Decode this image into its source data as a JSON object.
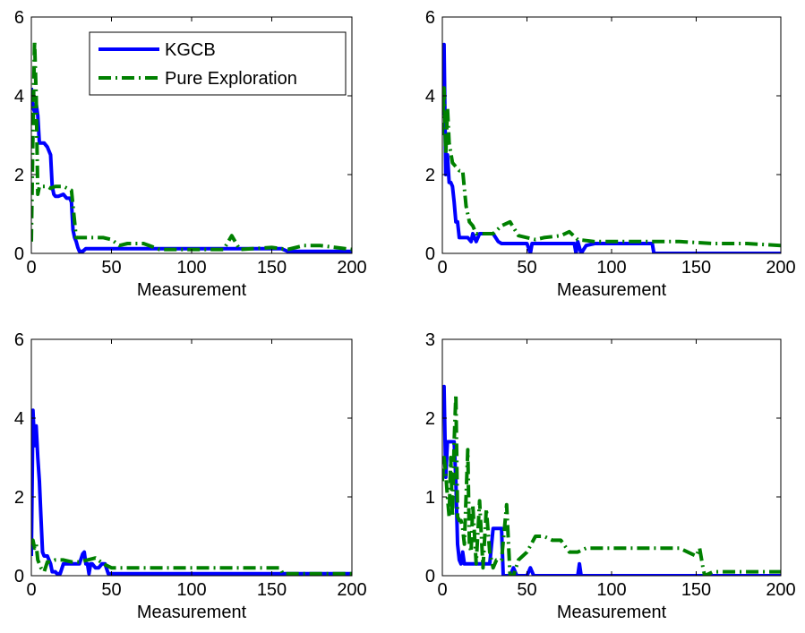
{
  "figure": {
    "legend": {
      "placement": "top-right of first panel",
      "entries": [
        {
          "label": "KGCB",
          "series_index": 0
        },
        {
          "label": "Pure Exploration",
          "series_index": 1
        }
      ]
    },
    "series_styles": [
      {
        "name": "KGCB",
        "color": "#0000ff",
        "dash": "solid"
      },
      {
        "name": "Pure Exploration",
        "color": "#008000",
        "dash": "dash-dot"
      }
    ]
  },
  "chart_data": [
    {
      "type": "line",
      "title": "",
      "xlabel": "Measurement",
      "ylabel": "",
      "xlim": [
        0,
        200
      ],
      "ylim": [
        0,
        6
      ],
      "xticks": [
        0,
        50,
        100,
        150,
        200
      ],
      "yticks": [
        0,
        2,
        4,
        6
      ],
      "grid": false,
      "series": [
        {
          "name": "KGCB",
          "x": [
            0,
            1,
            2,
            3,
            4,
            5,
            6,
            7,
            8,
            10,
            12,
            13,
            14,
            15,
            17,
            20,
            22,
            24,
            25,
            26,
            27,
            28,
            29,
            30,
            32,
            34,
            36,
            40,
            60,
            80,
            100,
            120,
            140,
            156,
            160,
            200
          ],
          "y": [
            4.2,
            3.7,
            3.6,
            3.8,
            3.5,
            2.8,
            2.8,
            2.8,
            2.8,
            2.7,
            2.5,
            1.7,
            1.5,
            1.45,
            1.45,
            1.5,
            1.4,
            1.4,
            1.3,
            0.6,
            0.4,
            0.3,
            0.15,
            0.05,
            0.05,
            0.12,
            0.12,
            0.12,
            0.12,
            0.12,
            0.12,
            0.12,
            0.12,
            0.12,
            0.05,
            0.05
          ]
        },
        {
          "name": "Pure Exploration",
          "x": [
            0,
            1,
            2,
            3,
            4,
            5,
            6,
            8,
            10,
            12,
            15,
            18,
            20,
            25,
            28,
            30,
            32,
            35,
            38,
            40,
            45,
            50,
            55,
            60,
            70,
            80,
            100,
            120,
            125,
            130,
            150,
            160,
            170,
            180,
            200
          ],
          "y": [
            0.3,
            3.0,
            5.4,
            4.0,
            1.5,
            1.7,
            1.7,
            1.7,
            1.7,
            1.65,
            1.7,
            1.7,
            1.7,
            1.6,
            0.4,
            0.4,
            0.4,
            0.4,
            0.4,
            0.4,
            0.4,
            0.35,
            0.2,
            0.25,
            0.25,
            0.1,
            0.1,
            0.1,
            0.45,
            0.1,
            0.15,
            0.1,
            0.2,
            0.2,
            0.1
          ]
        }
      ]
    },
    {
      "type": "line",
      "title": "",
      "xlabel": "Measurement",
      "ylabel": "",
      "xlim": [
        0,
        200
      ],
      "ylim": [
        0,
        6
      ],
      "xticks": [
        0,
        50,
        100,
        150,
        200
      ],
      "yticks": [
        0,
        2,
        4,
        6
      ],
      "grid": false,
      "series": [
        {
          "name": "KGCB",
          "x": [
            0,
            1,
            2,
            3,
            4,
            5,
            6,
            7,
            8,
            9,
            10,
            12,
            15,
            17,
            18,
            20,
            22,
            25,
            30,
            33,
            35,
            40,
            50,
            52,
            53,
            55,
            60,
            70,
            78,
            79,
            80,
            82,
            85,
            90,
            95,
            100,
            110,
            120,
            124,
            125,
            130,
            150,
            200
          ],
          "y": [
            3.5,
            5.3,
            2.0,
            2.5,
            1.8,
            1.8,
            1.7,
            1.3,
            0.8,
            0.8,
            0.4,
            0.4,
            0.4,
            0.3,
            0.5,
            0.3,
            0.5,
            0.5,
            0.5,
            0.3,
            0.25,
            0.25,
            0.25,
            0.0,
            0.25,
            0.25,
            0.25,
            0.25,
            0.25,
            0.0,
            0.3,
            0.0,
            0.2,
            0.25,
            0.25,
            0.25,
            0.25,
            0.25,
            0.25,
            0.0,
            0.0,
            0.0,
            0.0
          ]
        },
        {
          "name": "Pure Exploration",
          "x": [
            0,
            1,
            2,
            3,
            4,
            6,
            8,
            10,
            12,
            14,
            16,
            18,
            20,
            25,
            30,
            35,
            40,
            45,
            50,
            55,
            60,
            70,
            75,
            80,
            90,
            100,
            120,
            140,
            160,
            180,
            200
          ],
          "y": [
            3.0,
            4.2,
            2.5,
            3.7,
            2.8,
            2.3,
            2.2,
            2.1,
            2.1,
            1.2,
            0.8,
            0.7,
            0.5,
            0.5,
            0.5,
            0.7,
            0.8,
            0.45,
            0.4,
            0.35,
            0.4,
            0.45,
            0.55,
            0.35,
            0.3,
            0.3,
            0.3,
            0.3,
            0.25,
            0.25,
            0.2
          ]
        }
      ]
    },
    {
      "type": "line",
      "title": "",
      "xlabel": "Measurement",
      "ylabel": "",
      "xlim": [
        0,
        200
      ],
      "ylim": [
        0,
        6
      ],
      "xticks": [
        0,
        50,
        100,
        150,
        200
      ],
      "yticks": [
        0,
        2,
        4,
        6
      ],
      "grid": false,
      "series": [
        {
          "name": "KGCB",
          "x": [
            0,
            1,
            2,
            3,
            4,
            5,
            6,
            7,
            8,
            9,
            10,
            11,
            12,
            13,
            14,
            15,
            16,
            18,
            20,
            22,
            25,
            30,
            32,
            33,
            34,
            35,
            36,
            37,
            38,
            40,
            42,
            44,
            46,
            48,
            50,
            60,
            80,
            100,
            150,
            200
          ],
          "y": [
            0.5,
            4.2,
            3.3,
            3.8,
            3.0,
            2.4,
            1.5,
            0.6,
            0.5,
            0.5,
            0.5,
            0.4,
            0.3,
            0.1,
            0.1,
            0.1,
            0.05,
            0.05,
            0.3,
            0.3,
            0.3,
            0.3,
            0.55,
            0.6,
            0.3,
            0.3,
            0.05,
            0.3,
            0.3,
            0.2,
            0.2,
            0.3,
            0.3,
            0.05,
            0.05,
            0.05,
            0.05,
            0.05,
            0.05,
            0.05
          ]
        },
        {
          "name": "Pure Exploration",
          "x": [
            0,
            1,
            2,
            3,
            4,
            5,
            6,
            8,
            10,
            12,
            15,
            20,
            25,
            30,
            35,
            40,
            45,
            50,
            60,
            80,
            100,
            120,
            140,
            155,
            157,
            160,
            180,
            200
          ],
          "y": [
            0.8,
            0.9,
            0.7,
            0.8,
            0.4,
            0.3,
            0.2,
            0.1,
            0.35,
            0.35,
            0.4,
            0.4,
            0.35,
            0.35,
            0.4,
            0.45,
            0.3,
            0.2,
            0.2,
            0.2,
            0.2,
            0.2,
            0.2,
            0.2,
            0.05,
            0.05,
            0.05,
            0.05
          ]
        }
      ]
    },
    {
      "type": "line",
      "title": "",
      "xlabel": "Measurement",
      "ylabel": "",
      "xlim": [
        0,
        200
      ],
      "ylim": [
        0,
        3
      ],
      "xticks": [
        0,
        50,
        100,
        150,
        200
      ],
      "yticks": [
        0,
        1,
        2,
        3
      ],
      "grid": false,
      "series": [
        {
          "name": "KGCB",
          "x": [
            0,
            1,
            2,
            3,
            4,
            5,
            6,
            7,
            8,
            9,
            10,
            11,
            12,
            13,
            14,
            15,
            16,
            18,
            20,
            25,
            28,
            30,
            32,
            33,
            34,
            35,
            36,
            38,
            40,
            42,
            44,
            46,
            50,
            52,
            54,
            56,
            60,
            70,
            80,
            81,
            82,
            84,
            90,
            100,
            150,
            200
          ],
          "y": [
            2.0,
            2.4,
            1.25,
            1.7,
            1.7,
            1.7,
            1.7,
            1.7,
            1.2,
            0.4,
            0.2,
            0.15,
            0.3,
            0.15,
            0.15,
            0.15,
            0.15,
            0.15,
            0.15,
            0.15,
            0.15,
            0.6,
            0.6,
            0.6,
            0.6,
            0.6,
            0.0,
            0.0,
            0.0,
            0.1,
            0.0,
            0.0,
            0.0,
            0.1,
            0.0,
            0.0,
            0.0,
            0.0,
            0.0,
            0.15,
            0.0,
            0.0,
            0.0,
            0.0,
            0.0,
            0.0
          ]
        },
        {
          "name": "Pure Exploration",
          "x": [
            0,
            1,
            2,
            3,
            4,
            5,
            6,
            7,
            8,
            9,
            10,
            11,
            12,
            13,
            14,
            15,
            16,
            17,
            18,
            20,
            22,
            24,
            26,
            28,
            30,
            32,
            35,
            38,
            40,
            42,
            45,
            50,
            55,
            60,
            65,
            70,
            75,
            80,
            85,
            90,
            100,
            110,
            120,
            130,
            140,
            150,
            152,
            154,
            155,
            160,
            200
          ],
          "y": [
            1.2,
            1.5,
            1.3,
            1.0,
            0.75,
            1.5,
            0.75,
            1.7,
            2.3,
            0.75,
            0.7,
            0.7,
            0.6,
            0.4,
            1.0,
            1.6,
            0.4,
            0.3,
            0.9,
            0.15,
            0.95,
            0.1,
            0.85,
            0.3,
            0.1,
            0.2,
            0.2,
            0.9,
            0.0,
            0.0,
            0.2,
            0.3,
            0.5,
            0.5,
            0.45,
            0.45,
            0.3,
            0.3,
            0.35,
            0.35,
            0.35,
            0.35,
            0.35,
            0.35,
            0.35,
            0.25,
            0.35,
            0.1,
            0.0,
            0.05,
            0.05
          ]
        }
      ]
    }
  ]
}
